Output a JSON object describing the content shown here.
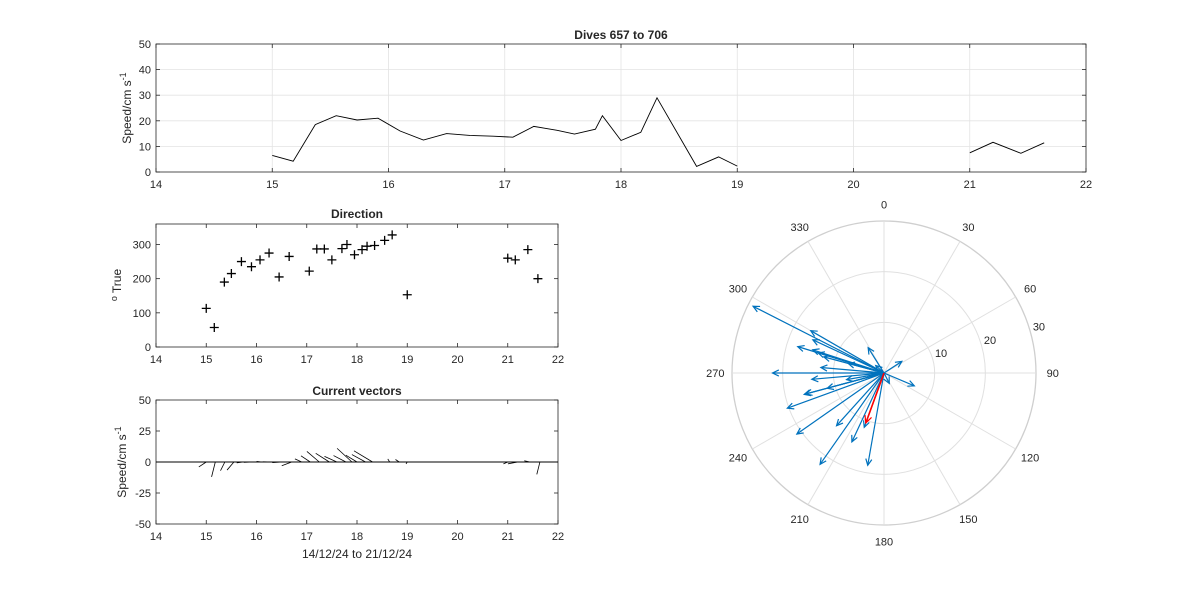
{
  "chart_data": [
    {
      "type": "line",
      "title": "Dives 657 to 706",
      "xlabel": "",
      "ylabel": "Speed/cm s",
      "ylabel_sup": "-1",
      "xlim": [
        14,
        22
      ],
      "ylim": [
        0,
        50
      ],
      "xticks": [
        14,
        15,
        16,
        17,
        18,
        19,
        20,
        21,
        22
      ],
      "yticks": [
        0,
        10,
        20,
        30,
        40,
        50
      ],
      "grid": true,
      "series": [
        {
          "color": "#000000",
          "segments": [
            [
              [
                15.0,
                6.5
              ],
              [
                15.18,
                4.2
              ],
              [
                15.37,
                18.5
              ],
              [
                15.55,
                22
              ],
              [
                15.73,
                20.3
              ],
              [
                15.91,
                21
              ],
              [
                16.1,
                16
              ],
              [
                16.3,
                12.5
              ],
              [
                16.5,
                15
              ],
              [
                16.7,
                14.3
              ],
              [
                16.9,
                14
              ],
              [
                17.07,
                13.6
              ],
              [
                17.25,
                17.8
              ],
              [
                17.45,
                16.3
              ],
              [
                17.6,
                14.8
              ],
              [
                17.78,
                16.7
              ],
              [
                17.84,
                22
              ],
              [
                18.0,
                12.3
              ],
              [
                18.17,
                15.5
              ],
              [
                18.31,
                29
              ],
              [
                18.65,
                2.2
              ],
              [
                18.84,
                5.9
              ],
              [
                19.0,
                2.3
              ]
            ],
            [
              [
                21.0,
                7.5
              ],
              [
                21.2,
                11.6
              ],
              [
                21.44,
                7.3
              ],
              [
                21.64,
                11.4
              ]
            ]
          ]
        }
      ]
    },
    {
      "type": "scatter",
      "title": "Direction",
      "xlabel": "",
      "ylabel": "True",
      "ylabel_prefix": "o",
      "xlim": [
        14,
        22
      ],
      "ylim": [
        0,
        360
      ],
      "xticks": [
        14,
        15,
        16,
        17,
        18,
        19,
        20,
        21,
        22
      ],
      "yticks": [
        0,
        100,
        200,
        300
      ],
      "grid": false,
      "marker": "+",
      "points": [
        [
          15.0,
          113
        ],
        [
          15.16,
          57
        ],
        [
          15.36,
          190
        ],
        [
          15.5,
          215
        ],
        [
          15.7,
          250
        ],
        [
          15.9,
          235
        ],
        [
          16.07,
          255
        ],
        [
          16.25,
          275
        ],
        [
          16.45,
          205
        ],
        [
          16.65,
          265
        ],
        [
          17.05,
          222
        ],
        [
          17.2,
          287
        ],
        [
          17.35,
          287
        ],
        [
          17.5,
          255
        ],
        [
          17.7,
          288
        ],
        [
          17.8,
          300
        ],
        [
          17.95,
          270
        ],
        [
          18.1,
          285
        ],
        [
          18.2,
          295
        ],
        [
          18.35,
          297
        ],
        [
          18.55,
          312
        ],
        [
          18.7,
          328
        ],
        [
          19.0,
          153
        ],
        [
          21.0,
          260
        ],
        [
          21.15,
          255
        ],
        [
          21.4,
          285
        ],
        [
          21.6,
          200
        ]
      ]
    },
    {
      "type": "quiver",
      "title": "Current vectors",
      "xlabel": "14/12/24 to 21/12/24",
      "ylabel": "Speed/cm s",
      "ylabel_sup": "-1",
      "xlim": [
        14,
        22
      ],
      "ylim": [
        -50,
        50
      ],
      "xticks": [
        14,
        15,
        16,
        17,
        18,
        19,
        20,
        21,
        22
      ],
      "yticks": [
        -50,
        -25,
        0,
        25,
        50
      ],
      "grid": false,
      "vectors": [
        [
          15.0,
          -6.0,
          -4.0
        ],
        [
          15.18,
          -3.0,
          -12.0
        ],
        [
          15.37,
          -3.5,
          -7.0
        ],
        [
          15.55,
          -5.5,
          -6.5
        ],
        [
          15.73,
          -5.0,
          -0.7
        ],
        [
          15.91,
          -6.5,
          -0.3
        ],
        [
          16.1,
          -4.0,
          0.5
        ],
        [
          16.3,
          -7.0,
          0.2
        ],
        [
          16.5,
          -7.5,
          -0.5
        ],
        [
          16.7,
          -8.0,
          -3.0
        ],
        [
          16.9,
          -5.5,
          2.5
        ],
        [
          17.07,
          -7.5,
          5.0
        ],
        [
          17.25,
          -10.0,
          8.5
        ],
        [
          17.45,
          -11.0,
          7.0
        ],
        [
          17.6,
          -10.0,
          4.5
        ],
        [
          17.78,
          -10.0,
          5.2
        ],
        [
          17.9,
          -12.0,
          11.0
        ],
        [
          18.0,
          -9.0,
          5.5
        ],
        [
          18.17,
          -11.0,
          6.0
        ],
        [
          18.31,
          -15.0,
          9.0
        ],
        [
          18.65,
          -1.5,
          2.5
        ],
        [
          18.84,
          -3.0,
          2.0
        ],
        [
          19.0,
          -1.0,
          -1.5
        ],
        [
          21.0,
          -3.5,
          -1.5
        ],
        [
          21.2,
          -8.0,
          -1.5
        ],
        [
          21.44,
          -4.5,
          1.0
        ],
        [
          21.64,
          -2.5,
          -10.0
        ]
      ]
    },
    {
      "type": "polar",
      "title": "",
      "angle_ticks": [
        0,
        30,
        60,
        90,
        120,
        150,
        180,
        210,
        240,
        270,
        300,
        330
      ],
      "radial_ticks": [
        10,
        20,
        30
      ],
      "rlim": [
        0,
        30
      ],
      "direction": "clockwise",
      "zero_location": "top",
      "vectors_color": "#0072BD",
      "mean_color": "#FF0000",
      "vectors": [
        [
          113,
          6.5
        ],
        [
          57,
          4.2
        ],
        [
          190,
          18.5
        ],
        [
          215,
          22
        ],
        [
          250,
          20.3
        ],
        [
          235,
          21
        ],
        [
          255,
          16
        ],
        [
          275,
          12.5
        ],
        [
          205,
          15
        ],
        [
          265,
          14.3
        ],
        [
          222,
          14
        ],
        [
          287,
          13.6
        ],
        [
          287,
          17.8
        ],
        [
          255,
          16.3
        ],
        [
          288,
          14.8
        ],
        [
          300,
          16.7
        ],
        [
          270,
          22
        ],
        [
          285,
          12.3
        ],
        [
          295,
          15.5
        ],
        [
          297,
          29
        ],
        [
          312,
          2.2
        ],
        [
          328,
          5.9
        ],
        [
          153,
          2.3
        ],
        [
          260,
          7.5
        ],
        [
          255,
          11.6
        ],
        [
          285,
          7.3
        ],
        [
          200,
          11.4
        ]
      ],
      "mean_vector": [
        200,
        10.5
      ]
    }
  ]
}
